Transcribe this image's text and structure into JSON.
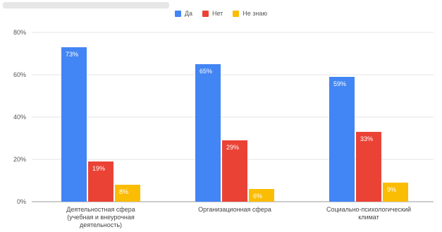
{
  "chart_data": {
    "type": "bar",
    "title": "",
    "xlabel": "",
    "ylabel": "",
    "categories": [
      [
        "Деятельностная сфера",
        "(учебная и внеурочная",
        "деятельность)"
      ],
      [
        "Организационная сфера"
      ],
      [
        "Социально-психологический",
        "климат"
      ]
    ],
    "series": [
      {
        "name": "Да",
        "color": "#4285f4",
        "values": [
          73,
          65,
          59
        ],
        "labels": [
          "73%",
          "65%",
          "59%"
        ]
      },
      {
        "name": "Нет",
        "color": "#ea4335",
        "values": [
          19,
          29,
          33
        ],
        "labels": [
          "19%",
          "29%",
          "33%"
        ]
      },
      {
        "name": "Не знаю",
        "color": "#fbbc04",
        "values": [
          8,
          6,
          9
        ],
        "labels": [
          "8%",
          "6%",
          "9%"
        ]
      }
    ],
    "ylim": [
      0,
      80
    ],
    "yticks": [
      0,
      20,
      40,
      60,
      80
    ],
    "ytick_labels": [
      "0%",
      "20%",
      "40%",
      "60%",
      "80%"
    ],
    "grid": true,
    "legend_position": "top-center"
  }
}
